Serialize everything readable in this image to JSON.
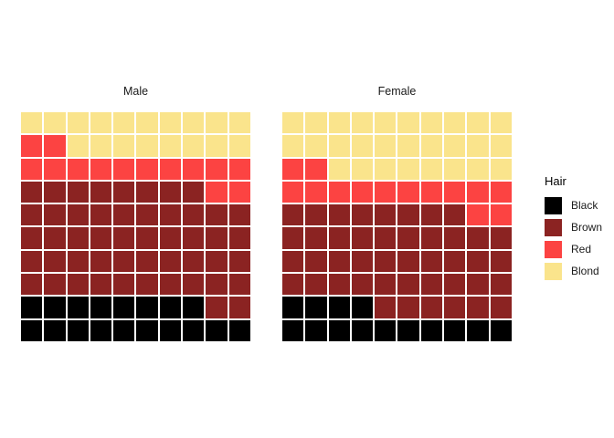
{
  "chart_data": {
    "type": "heatmap",
    "variant": "waffle",
    "title": "",
    "description": "Two 10x10 waffle grids (100 squares each) showing hair colour distribution for Male and Female; squares fill bottom-left to top-right: Black, Brown, Red, Blond",
    "grid_size": {
      "rows": 10,
      "cols": 10
    },
    "cell_codes": {
      "B": "Black",
      "N": "Brown",
      "R": "Red",
      "L": "Blond"
    },
    "facets": [
      {
        "title": "Male",
        "counts": {
          "Black": 18,
          "Brown": 50,
          "Red": 14,
          "Blond": 18
        },
        "rows": [
          "LLLLLLLLLL",
          "RRLLLLLLLL",
          "RRRRRRRRRR",
          "NNNNNNNNRR",
          "NNNNNNNNNN",
          "NNNNNNNNNN",
          "NNNNNNNNNN",
          "NNNNNNNNNN",
          "BBBBBBBBNN",
          "BBBBBBBBBB"
        ]
      },
      {
        "title": "Female",
        "counts": {
          "Black": 14,
          "Brown": 44,
          "Red": 14,
          "Blond": 28
        },
        "rows": [
          "LLLLLLLLLL",
          "LLLLLLLLLL",
          "RRLLLLLLLL",
          "RRRRRRRRRR",
          "NNNNNNNNRR",
          "NNNNNNNNNN",
          "NNNNNNNNNN",
          "NNNNNNNNNN",
          "BBBBNNNNNN",
          "BBBBBBBBBB"
        ]
      }
    ],
    "legend": {
      "title": "Hair",
      "position": "right",
      "entries": [
        {
          "code": "B",
          "label": "Black",
          "color": "#000000"
        },
        {
          "code": "N",
          "label": "Brown",
          "color": "#8B2322"
        },
        {
          "code": "R",
          "label": "Red",
          "color": "#FC4342"
        },
        {
          "code": "L",
          "label": "Blond",
          "color": "#FAE48C"
        }
      ]
    },
    "background_color": "#FFFFFF",
    "cell_gap_color": "#FFFFFF"
  }
}
